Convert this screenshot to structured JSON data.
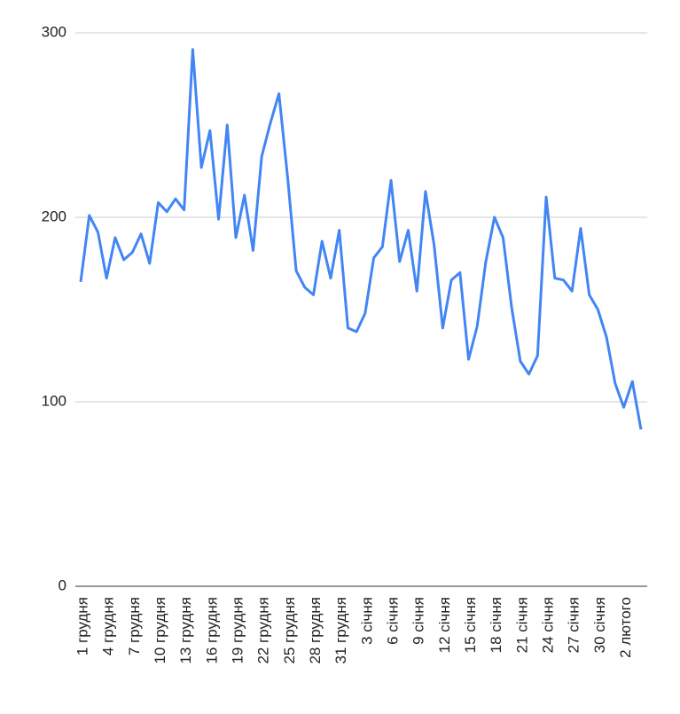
{
  "chart_data": {
    "type": "line",
    "categories": [
      "1 грудня",
      null,
      null,
      "4 грудня",
      null,
      null,
      "7 грудня",
      null,
      null,
      "10 грудня",
      null,
      null,
      "13 грудня",
      null,
      null,
      "16 грудня",
      null,
      null,
      "19 грудня",
      null,
      null,
      "22 грудня",
      null,
      null,
      "25 грудня",
      null,
      null,
      "28 грудня",
      null,
      null,
      "31 грудня",
      null,
      null,
      "3 січня",
      null,
      null,
      "6 січня",
      null,
      null,
      "9 січня",
      null,
      null,
      "12 січня",
      null,
      null,
      "15 січня",
      null,
      null,
      "18 січня",
      null,
      null,
      "21 січня",
      null,
      null,
      "24 січня",
      null,
      null,
      "27 січня",
      null,
      null,
      "30 січня",
      null,
      null,
      "2 лютого",
      null,
      null
    ],
    "series": [
      {
        "color": "#4285f4",
        "values": [
          165,
          201,
          192,
          167,
          189,
          177,
          181,
          191,
          175,
          208,
          203,
          210,
          204,
          291,
          227,
          247,
          199,
          250,
          189,
          212,
          182,
          233,
          251,
          267,
          222,
          171,
          162,
          158,
          187,
          167,
          193,
          140,
          138,
          148,
          178,
          184,
          220,
          176,
          193,
          160,
          214,
          185,
          140,
          166,
          170,
          123,
          141,
          176,
          200,
          189,
          151,
          122,
          115,
          125,
          211,
          167,
          166,
          160,
          194,
          158,
          150,
          135,
          110,
          97,
          111,
          85
        ]
      }
    ],
    "ylim": [
      0,
      300
    ],
    "yticks": [
      0,
      100,
      200,
      300
    ],
    "grid": true
  }
}
